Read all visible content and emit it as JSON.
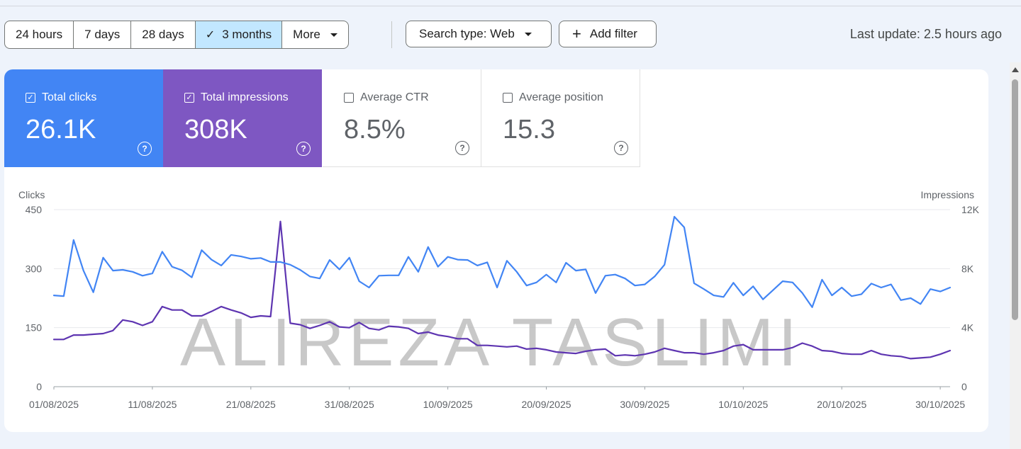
{
  "toolbar": {
    "ranges": [
      "24 hours",
      "7 days",
      "28 days",
      "3 months"
    ],
    "more": "More",
    "search_type": "Search type: Web",
    "add_filter": "Add filter",
    "last_update": "Last update: 2.5 hours ago"
  },
  "metrics": {
    "clicks": {
      "label": "Total clicks",
      "value": "26.1K"
    },
    "impressions": {
      "label": "Total impressions",
      "value": "308K"
    },
    "ctr": {
      "label": "Average CTR",
      "value": "8.5%"
    },
    "position": {
      "label": "Average position",
      "value": "15.3"
    }
  },
  "colors": {
    "clicks": "#4285f4",
    "impressions": "#7e57c2",
    "impressions_line": "#5e35b1"
  },
  "watermark": "ALIREZA TASLIMI",
  "chart_data": {
    "type": "line",
    "x_start": "01/08/2025",
    "x_ticks": [
      "01/08/2025",
      "11/08/2025",
      "21/08/2025",
      "31/08/2025",
      "10/09/2025",
      "20/09/2025",
      "30/09/2025",
      "10/10/2025",
      "20/10/2025",
      "30/10/2025"
    ],
    "left_axis": {
      "label": "Clicks",
      "ticks": [
        "0",
        "150",
        "300",
        "450"
      ],
      "range": [
        0,
        450
      ]
    },
    "right_axis": {
      "label": "Impressions",
      "ticks": [
        "0",
        "4K",
        "8K",
        "12K"
      ],
      "range": [
        0,
        12000
      ]
    },
    "grid": true,
    "series": [
      {
        "name": "Total clicks",
        "axis": "left",
        "values": [
          232,
          230,
          373,
          295,
          240,
          328,
          295,
          297,
          292,
          282,
          288,
          343,
          305,
          296,
          278,
          347,
          323,
          308,
          335,
          331,
          325,
          327,
          317,
          317,
          310,
          297,
          280,
          275,
          322,
          298,
          328,
          268,
          252,
          282,
          283,
          283,
          330,
          292,
          355,
          305,
          330,
          323,
          322,
          308,
          316,
          252,
          320,
          292,
          257,
          265,
          285,
          265,
          315,
          295,
          298,
          238,
          282,
          285,
          275,
          257,
          260,
          280,
          310,
          432,
          405,
          263,
          248,
          232,
          228,
          264,
          232,
          255,
          222,
          245,
          268,
          265,
          238,
          202,
          272,
          232,
          252,
          230,
          235,
          262,
          252,
          260,
          220,
          225,
          210,
          248,
          242,
          252
        ]
      },
      {
        "name": "Total impressions",
        "axis": "right",
        "values": [
          3200,
          3200,
          3500,
          3500,
          3550,
          3600,
          3800,
          4520,
          4400,
          4150,
          4400,
          5430,
          5200,
          5200,
          4800,
          4800,
          5100,
          5430,
          5200,
          5000,
          4700,
          4800,
          4750,
          11200,
          4300,
          4200,
          3950,
          4150,
          4400,
          4050,
          4000,
          4350,
          3950,
          3850,
          4100,
          4050,
          3950,
          3600,
          3700,
          3500,
          3400,
          3250,
          3250,
          2800,
          2800,
          2750,
          2700,
          2750,
          2550,
          2600,
          2500,
          2350,
          2300,
          2250,
          2400,
          2500,
          2550,
          2100,
          2150,
          2100,
          2200,
          2350,
          2600,
          2450,
          2300,
          2300,
          2200,
          2300,
          2450,
          2750,
          2850,
          2500,
          2500,
          2500,
          2500,
          2650,
          2950,
          2750,
          2450,
          2400,
          2250,
          2200,
          2200,
          2450,
          2200,
          2100,
          2050,
          1900,
          1950,
          2000,
          2200,
          2450
        ]
      }
    ]
  }
}
